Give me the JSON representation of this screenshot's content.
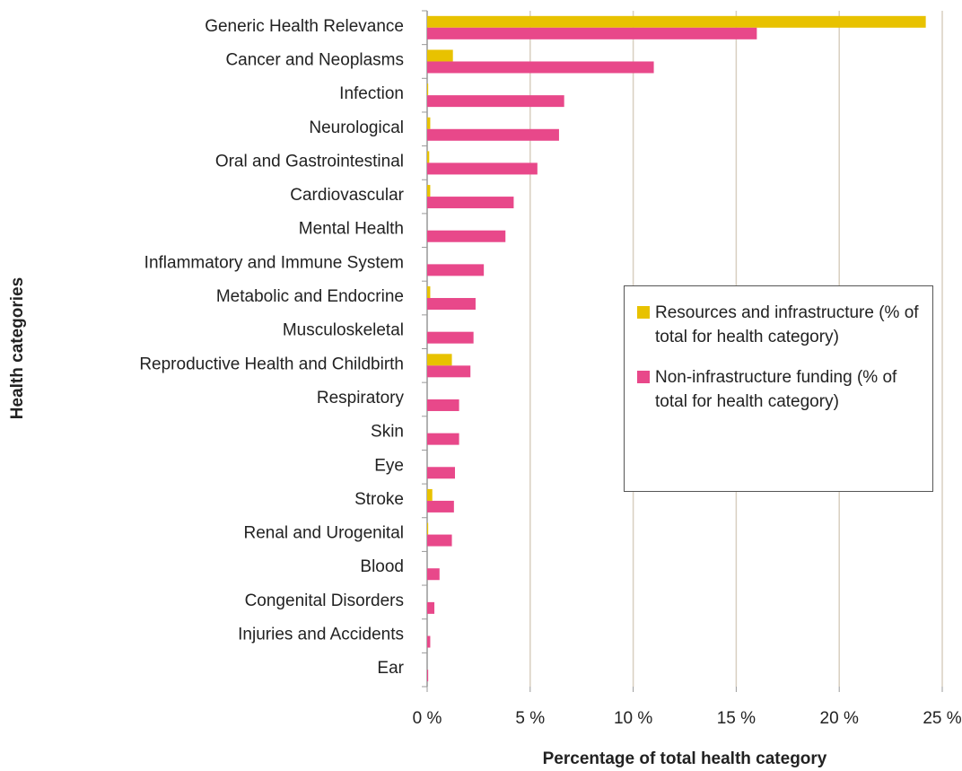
{
  "chart_data": {
    "type": "bar",
    "orientation": "horizontal",
    "xlabel": "Percentage of total health category",
    "ylabel": "Health categories",
    "categories": [
      "Generic Health Relevance",
      "Cancer and Neoplasms",
      "Infection",
      "Neurological",
      "Oral and Gastrointestinal",
      "Cardiovascular",
      "Mental Health",
      "Inflammatory and Immune System",
      "Metabolic and Endocrine",
      "Musculoskeletal",
      "Reproductive Health and Childbirth",
      "Respiratory",
      "Skin",
      "Eye",
      "Stroke",
      "Renal and Urogenital",
      "Blood",
      "Congenital Disorders",
      "Injuries and Accidents",
      "Ear"
    ],
    "series": [
      {
        "name": "Resources and infrastructure (% of total for health category)",
        "color": "#e8c200",
        "values": [
          24.2,
          1.25,
          0.05,
          0.15,
          0.1,
          0.15,
          0,
          0,
          0.15,
          0,
          1.2,
          0,
          0,
          0,
          0.25,
          0.05,
          0,
          0,
          0,
          0
        ]
      },
      {
        "name": "Non-infrastructure funding (% of total for health category)",
        "color": "#e8488a",
        "values": [
          16.0,
          11.0,
          6.65,
          6.4,
          5.35,
          4.2,
          3.8,
          2.75,
          2.35,
          2.25,
          2.1,
          1.55,
          1.55,
          1.35,
          1.3,
          1.2,
          0.6,
          0.35,
          0.15,
          0.05
        ]
      }
    ],
    "xlim": [
      0,
      25
    ],
    "xticks": [
      {
        "value": 0,
        "label": "0 %"
      },
      {
        "value": 5,
        "label": "5 %"
      },
      {
        "value": 10,
        "label": "10 %"
      },
      {
        "value": 15,
        "label": "15 %"
      },
      {
        "value": 20,
        "label": "20 %"
      },
      {
        "value": 25,
        "label": "25 %"
      }
    ],
    "grid": true
  }
}
